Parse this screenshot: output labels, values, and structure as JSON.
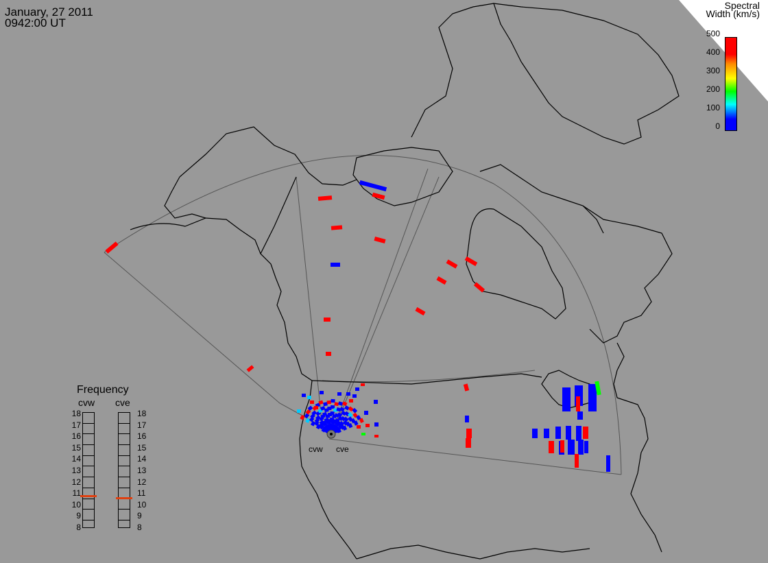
{
  "header": {
    "date": "January, 27 2011",
    "time": "0942:00 UT"
  },
  "colorbar": {
    "title_line1": "Spectral",
    "title_line2": "Width (km/s)",
    "ticks": [
      "500",
      "400",
      "300",
      "200",
      "100",
      "0"
    ],
    "colors": [
      "#0000ff",
      "#00ffff",
      "#00ff00",
      "#ffff00",
      "#ff8800",
      "#ff0000"
    ]
  },
  "frequency": {
    "title": "Frequency",
    "radars": [
      "cvw",
      "cve"
    ],
    "levels": [
      "18",
      "17",
      "16",
      "15",
      "14",
      "13",
      "12",
      "11",
      "10",
      "9",
      "8"
    ],
    "current_mhz": {
      "cvw": 10.7,
      "cve": 10.5
    }
  },
  "sites": {
    "west_label": "cvw",
    "east_label": "cve"
  },
  "colors": {
    "background": "#999999",
    "ocean_corner": "#ffffff",
    "high_width": "#ff0000",
    "low_width": "#0000ff",
    "indicator": "#e04010"
  }
}
